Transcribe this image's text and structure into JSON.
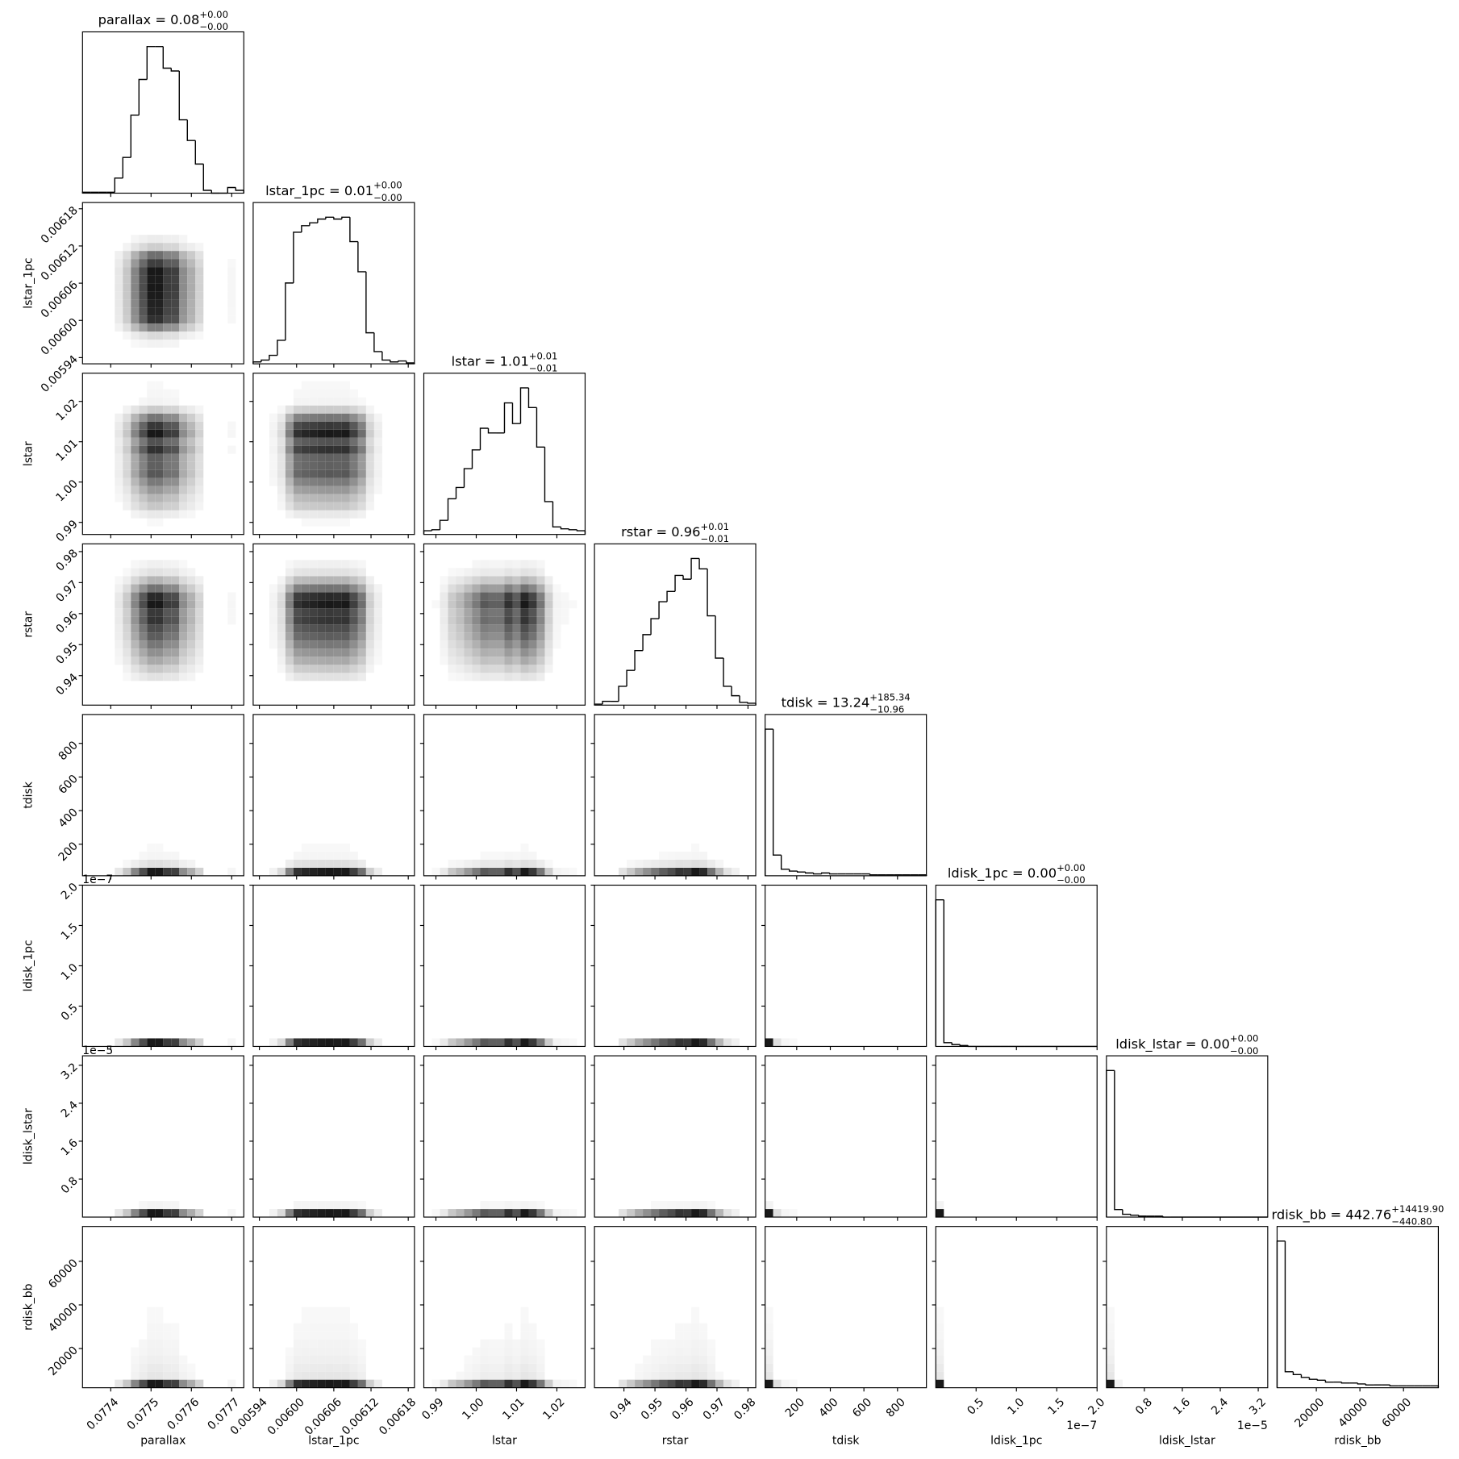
{
  "chart_data": {
    "type": "corner",
    "parameters": [
      {
        "name": "parallax",
        "title": "parallax = 0.08",
        "title_plus": "+0.00",
        "title_minus": "−0.00",
        "lim": [
          0.07733,
          0.07773
        ],
        "ticks": [
          0.0774,
          0.0775,
          0.0776,
          0.0777
        ],
        "bins": [
          0.07733,
          0.07735,
          0.07737,
          0.07739,
          0.07741,
          0.07743,
          0.07745,
          0.07747,
          0.07749,
          0.07751,
          0.07753,
          0.07755,
          0.07757,
          0.07759,
          0.07761,
          0.07763,
          0.07765,
          0.07767,
          0.07769,
          0.07771,
          0.07773
        ],
        "hist_counts": [
          1,
          1,
          1,
          1,
          16,
          38,
          83,
          121,
          156,
          156,
          133,
          130,
          78,
          56,
          31,
          3,
          0,
          0,
          6,
          3
        ]
      },
      {
        "name": "lstar_1pc",
        "title": "lstar_1pc = 0.01",
        "title_plus": "+0.00",
        "title_minus": "−0.00",
        "lim": [
          0.00593,
          0.00619
        ],
        "ticks": [
          0.00594,
          {
            "value": 0.006,
            "label": "0.00600"
          },
          0.00606,
          0.00612,
          0.00618
        ],
        "bins": [
          0.00593,
          0.005943,
          0.005956,
          0.005969,
          0.005982,
          0.005995,
          0.006008,
          0.006021,
          0.006034,
          0.006047,
          0.00606,
          0.006073,
          0.006086,
          0.006099,
          0.006112,
          0.006125,
          0.006138,
          0.006151,
          0.006164,
          0.006177,
          0.00619
        ],
        "hist_counts": [
          2,
          4,
          9,
          25,
          86,
          140,
          147,
          150,
          154,
          156,
          154,
          156,
          130,
          98,
          33,
          13,
          4,
          2,
          3,
          1
        ]
      },
      {
        "name": "lstar",
        "title": "lstar = 1.01",
        "title_plus": "+0.01",
        "title_minus": "−0.01",
        "lim": [
          0.987,
          1.027
        ],
        "ticks": [
          0.99,
          {
            "value": 1,
            "label": "1.00"
          },
          1.01,
          1.02
        ],
        "bins": [
          0.987,
          0.989,
          0.991,
          0.993,
          0.995,
          0.997,
          0.999,
          1.001,
          1.003,
          1.005,
          1.007,
          1.009,
          1.011,
          1.013,
          1.015,
          1.017,
          1.019,
          1.021,
          1.023,
          1.025,
          1.027
        ],
        "hist_counts": [
          4,
          5,
          15,
          38,
          50,
          70,
          90,
          113,
          108,
          108,
          140,
          118,
          156,
          135,
          93,
          35,
          8,
          6,
          5,
          4
        ]
      },
      {
        "name": "rstar",
        "title": "rstar = 0.96",
        "title_plus": "+0.01",
        "title_minus": "−0.01",
        "lim": [
          0.9305,
          0.9825
        ],
        "ticks": [
          0.94,
          0.95,
          0.96,
          0.97,
          0.98
        ],
        "bins": [
          0.9305,
          0.9331,
          0.9357,
          0.9383,
          0.9409,
          0.9435,
          0.9461,
          0.9487,
          0.9513,
          0.9539,
          0.9565,
          0.9591,
          0.9617,
          0.9643,
          0.9669,
          0.9695,
          0.9721,
          0.9747,
          0.9773,
          0.9799,
          0.9825
        ],
        "hist_counts": [
          1,
          4,
          4,
          20,
          37,
          58,
          75,
          92,
          110,
          121,
          138,
          134,
          156,
          145,
          95,
          50,
          20,
          10,
          3,
          2
        ]
      },
      {
        "name": "tdisk",
        "title": "tdisk = 13.24",
        "title_plus": "+185.34",
        "title_minus": "−10.96",
        "lim": [
          12,
          972
        ],
        "ticks": [
          200,
          400,
          600,
          800
        ],
        "bins": [
          12,
          60,
          108,
          156,
          204,
          252,
          300,
          348,
          396,
          444,
          492,
          540,
          588,
          636,
          684,
          732,
          780,
          828,
          876,
          924,
          972
        ],
        "hist_counts": [
          156,
          22,
          7,
          5,
          4,
          3,
          2,
          3,
          2,
          2,
          2,
          2,
          2,
          1,
          1,
          1,
          1,
          1,
          1,
          1
        ]
      },
      {
        "name": "ldisk_1pc",
        "title": "ldisk_1pc = 0.00",
        "title_plus": "+0.00",
        "title_minus": "−0.00",
        "offset_label": "1e−7",
        "lim": [
          0,
          2e-07
        ],
        "ticks": [
          {
            "value": 5e-08,
            "label": "0.5"
          },
          {
            "value": 1e-07,
            "label": "1.0"
          },
          {
            "value": 1.5e-07,
            "label": "1.5"
          },
          {
            "value": 2e-07,
            "label": "2.0"
          }
        ],
        "bins": [
          0,
          1e-08,
          2e-08,
          3e-08,
          4e-08,
          5e-08,
          6e-08,
          7e-08,
          8e-08,
          9e-08,
          1e-07,
          1.1e-07,
          1.2e-07,
          1.3e-07,
          1.4e-07,
          1.5e-07,
          1.6e-07,
          1.7e-07,
          1.8e-07,
          1.9e-07,
          2e-07
        ],
        "hist_counts": [
          156,
          4,
          2,
          1,
          0,
          0,
          0,
          0,
          0,
          0,
          0,
          0,
          0,
          0,
          0,
          0,
          0,
          0,
          0,
          0
        ]
      },
      {
        "name": "ldisk_lstar",
        "title": "ldisk_lstar = 0.00",
        "title_plus": "+0.00",
        "title_minus": "−0.00",
        "offset_label": "1e−5",
        "lim": [
          0,
          3.4e-05
        ],
        "ticks": [
          {
            "value": 8e-06,
            "label": "0.8"
          },
          {
            "value": 1.6e-05,
            "label": "1.6"
          },
          {
            "value": 2.4e-05,
            "label": "2.4"
          },
          {
            "value": 3.2e-05,
            "label": "3.2"
          }
        ],
        "bins": [
          0,
          1.7e-06,
          3.4e-06,
          5.1e-06,
          6.8e-06,
          8.5e-06,
          1.02e-05,
          1.19e-05,
          1.36e-05,
          1.53e-05,
          1.7e-05,
          1.87e-05,
          2.04e-05,
          2.21e-05,
          2.38e-05,
          2.55e-05,
          2.72e-05,
          2.89e-05,
          3.06e-05,
          3.23e-05,
          3.4e-05
        ],
        "hist_counts": [
          156,
          8,
          3,
          2,
          1,
          1,
          1,
          0,
          0,
          0,
          0,
          0,
          0,
          0,
          0,
          0,
          0,
          0,
          0,
          0
        ]
      },
      {
        "name": "rdisk_bb",
        "title": "rdisk_bb = 442.76",
        "title_plus": "+14419.90",
        "title_minus": "−440.80",
        "lim": [
          2000,
          76000
        ],
        "ticks": [
          20000,
          40000,
          60000
        ],
        "bins": [
          2000,
          5700,
          9400,
          13100,
          16800,
          20500,
          24200,
          27900,
          31600,
          35300,
          39000,
          42700,
          46400,
          50100,
          53800,
          57500,
          61200,
          64900,
          68600,
          72300,
          76000
        ],
        "hist_counts": [
          156,
          17,
          14,
          11,
          9,
          8,
          6,
          6,
          5,
          5,
          4,
          3,
          3,
          3,
          2,
          2,
          2,
          2,
          2,
          2
        ]
      }
    ]
  }
}
